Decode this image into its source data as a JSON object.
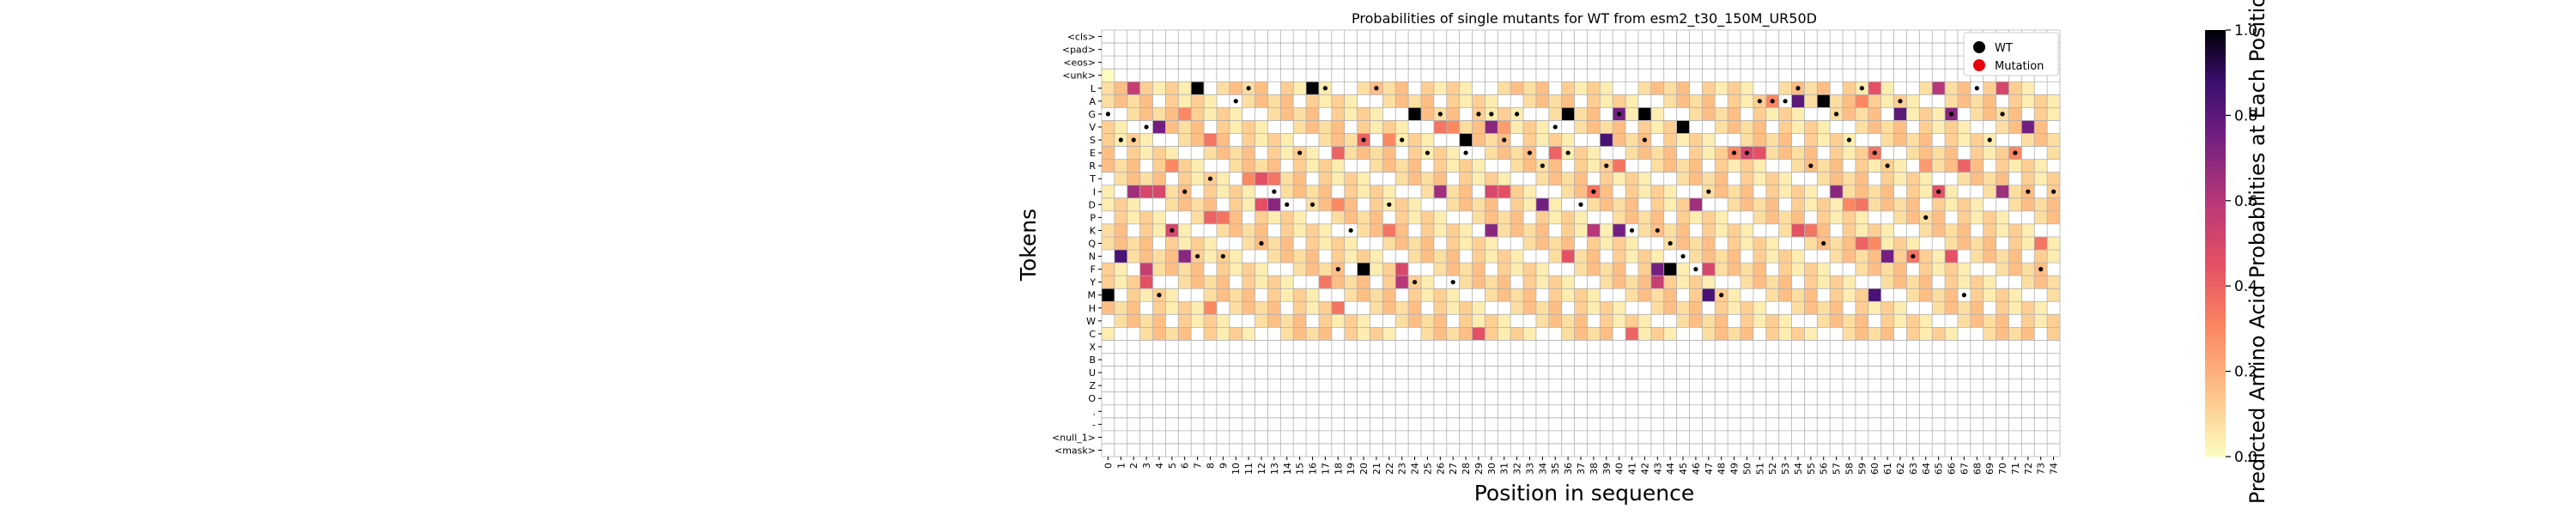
{
  "chart_data": {
    "type": "heatmap",
    "title": "Probabilities of single mutants for WT from esm2_t30_150M_UR50D",
    "xlabel": "Position in sequence",
    "ylabel": "Tokens",
    "colorbar_label": "Predicted Amino Acid Probabilities at Each Position",
    "colorbar_ticks": [
      "0.0",
      "0.2",
      "0.4",
      "0.6",
      "0.8",
      "1.0"
    ],
    "colormap": "magma_r",
    "value_range": [
      0,
      1
    ],
    "legend_placement": "upper-right",
    "legend": [
      {
        "label": "WT",
        "color": "#000000"
      },
      {
        "label": "Mutation",
        "color": "#e8000b"
      }
    ],
    "tokens": [
      "<cls>",
      "<pad>",
      "<eos>",
      "<unk>",
      "L",
      "A",
      "G",
      "V",
      "S",
      "E",
      "R",
      "T",
      "I",
      "D",
      "P",
      "K",
      "Q",
      "N",
      "F",
      "Y",
      "M",
      "H",
      "W",
      "C",
      "X",
      "B",
      "U",
      "Z",
      "O",
      ".",
      "-",
      "<null_1>",
      "<mask>"
    ],
    "positions": [
      "0",
      "1",
      "2",
      "3",
      "4",
      "5",
      "6",
      "7",
      "8",
      "9",
      "10",
      "11",
      "12",
      "13",
      "14",
      "15",
      "16",
      "17",
      "18",
      "19",
      "20",
      "21",
      "22",
      "23",
      "24",
      "25",
      "26",
      "27",
      "28",
      "29",
      "30",
      "31",
      "32",
      "33",
      "34",
      "35",
      "36",
      "37",
      "38",
      "39",
      "40",
      "41",
      "42",
      "43",
      "44",
      "45",
      "46",
      "47",
      "48",
      "49",
      "50",
      "51",
      "52",
      "53",
      "54",
      "55",
      "56",
      "57",
      "58",
      "59",
      "60",
      "61",
      "62",
      "63",
      "64",
      "65",
      "66",
      "67",
      "68",
      "69",
      "70",
      "71",
      "72",
      "73",
      "74"
    ],
    "wt_sequence": "GSSVMKINTNALQIDEDLFKSVLDSGYEGGSGERVEDIRGKSKQNFIMEEAAALRQGSLERLANPIGMLSGEIYI",
    "cells": [
      [
        4,
        2,
        0.55
      ],
      [
        4,
        7,
        1.0
      ],
      [
        4,
        16,
        1.0
      ],
      [
        4,
        70,
        0.5
      ],
      [
        4,
        60,
        0.45
      ],
      [
        4,
        65,
        0.6
      ],
      [
        5,
        56,
        1.0
      ],
      [
        5,
        54,
        0.8
      ],
      [
        5,
        59,
        0.3
      ],
      [
        5,
        52,
        0.3
      ],
      [
        6,
        24,
        1.0
      ],
      [
        6,
        36,
        1.0
      ],
      [
        6,
        42,
        1.0
      ],
      [
        6,
        40,
        0.75
      ],
      [
        6,
        62,
        0.8
      ],
      [
        6,
        66,
        0.7
      ],
      [
        6,
        6,
        0.3
      ],
      [
        7,
        4,
        0.75
      ],
      [
        7,
        45,
        1.0
      ],
      [
        7,
        30,
        0.7
      ],
      [
        7,
        31,
        0.25
      ],
      [
        7,
        72,
        0.75
      ],
      [
        7,
        27,
        0.3
      ],
      [
        7,
        26,
        0.35
      ],
      [
        8,
        28,
        1.0
      ],
      [
        8,
        20,
        0.4
      ],
      [
        8,
        39,
        0.85
      ],
      [
        8,
        22,
        0.3
      ],
      [
        8,
        8,
        0.35
      ],
      [
        9,
        50,
        0.5
      ],
      [
        9,
        51,
        0.45
      ],
      [
        9,
        49,
        0.3
      ],
      [
        9,
        35,
        0.4
      ],
      [
        9,
        18,
        0.4
      ],
      [
        9,
        71,
        0.3
      ],
      [
        9,
        60,
        0.35
      ],
      [
        10,
        5,
        0.3
      ],
      [
        10,
        40,
        0.35
      ],
      [
        10,
        67,
        0.4
      ],
      [
        10,
        64,
        0.25
      ],
      [
        11,
        12,
        0.45
      ],
      [
        11,
        13,
        0.35
      ],
      [
        11,
        11,
        0.3
      ],
      [
        12,
        3,
        0.5
      ],
      [
        12,
        4,
        0.5
      ],
      [
        12,
        2,
        0.65
      ],
      [
        12,
        26,
        0.65
      ],
      [
        12,
        30,
        0.5
      ],
      [
        12,
        31,
        0.45
      ],
      [
        12,
        57,
        0.7
      ],
      [
        12,
        70,
        0.65
      ],
      [
        12,
        65,
        0.45
      ],
      [
        12,
        38,
        0.35
      ],
      [
        13,
        13,
        0.7
      ],
      [
        13,
        12,
        0.45
      ],
      [
        13,
        18,
        0.3
      ],
      [
        13,
        34,
        0.75
      ],
      [
        13,
        46,
        0.65
      ],
      [
        13,
        58,
        0.3
      ],
      [
        13,
        59,
        0.35
      ],
      [
        14,
        9,
        0.35
      ],
      [
        14,
        8,
        0.4
      ],
      [
        15,
        5,
        0.5
      ],
      [
        15,
        30,
        0.7
      ],
      [
        15,
        38,
        0.6
      ],
      [
        15,
        40,
        0.75
      ],
      [
        15,
        22,
        0.35
      ],
      [
        15,
        54,
        0.45
      ],
      [
        15,
        55,
        0.35
      ],
      [
        16,
        59,
        0.4
      ],
      [
        16,
        73,
        0.35
      ],
      [
        16,
        60,
        0.3
      ],
      [
        17,
        1,
        0.85
      ],
      [
        17,
        6,
        0.7
      ],
      [
        17,
        36,
        0.45
      ],
      [
        17,
        61,
        0.75
      ],
      [
        17,
        66,
        0.45
      ],
      [
        17,
        63,
        0.35
      ],
      [
        18,
        20,
        1.0
      ],
      [
        18,
        44,
        1.0
      ],
      [
        18,
        3,
        0.55
      ],
      [
        18,
        43,
        0.75
      ],
      [
        18,
        23,
        0.5
      ],
      [
        18,
        47,
        0.5
      ],
      [
        19,
        3,
        0.45
      ],
      [
        19,
        23,
        0.6
      ],
      [
        19,
        43,
        0.55
      ],
      [
        19,
        17,
        0.35
      ],
      [
        20,
        0,
        1.0
      ],
      [
        20,
        47,
        0.85
      ],
      [
        20,
        60,
        0.85
      ],
      [
        21,
        18,
        0.35
      ],
      [
        21,
        8,
        0.3
      ],
      [
        23,
        29,
        0.45
      ],
      [
        23,
        41,
        0.4
      ],
      [
        3,
        0,
        0.0
      ]
    ],
    "wt_points": [
      [
        6,
        0
      ],
      [
        8,
        1
      ],
      [
        8,
        2
      ],
      [
        7,
        3
      ],
      [
        20,
        4
      ],
      [
        15,
        5
      ],
      [
        12,
        6
      ],
      [
        17,
        7
      ],
      [
        11,
        8
      ],
      [
        17,
        9
      ],
      [
        5,
        10
      ],
      [
        4,
        11
      ],
      [
        16,
        12
      ],
      [
        12,
        13
      ],
      [
        13,
        14
      ],
      [
        9,
        15
      ],
      [
        13,
        16
      ],
      [
        4,
        17
      ],
      [
        18,
        18
      ],
      [
        15,
        19
      ],
      [
        8,
        20
      ],
      [
        4,
        21
      ],
      [
        13,
        22
      ],
      [
        8,
        23
      ],
      [
        19,
        24
      ],
      [
        9,
        25
      ],
      [
        6,
        26
      ],
      [
        19,
        27
      ],
      [
        9,
        28
      ],
      [
        6,
        29
      ],
      [
        6,
        30
      ],
      [
        8,
        31
      ],
      [
        6,
        32
      ],
      [
        9,
        33
      ],
      [
        10,
        34
      ],
      [
        7,
        35
      ],
      [
        9,
        36
      ],
      [
        13,
        37
      ],
      [
        12,
        38
      ],
      [
        10,
        39
      ],
      [
        6,
        40
      ],
      [
        15,
        41
      ],
      [
        8,
        42
      ],
      [
        15,
        43
      ],
      [
        16,
        44
      ],
      [
        17,
        45
      ],
      [
        18,
        46
      ],
      [
        12,
        47
      ],
      [
        20,
        48
      ],
      [
        9,
        49
      ],
      [
        9,
        50
      ],
      [
        5,
        51
      ],
      [
        5,
        52
      ],
      [
        5,
        53
      ],
      [
        4,
        54
      ],
      [
        10,
        55
      ],
      [
        16,
        56
      ],
      [
        6,
        57
      ],
      [
        8,
        58
      ],
      [
        4,
        59
      ],
      [
        9,
        60
      ],
      [
        10,
        61
      ],
      [
        5,
        62
      ],
      [
        17,
        63
      ],
      [
        14,
        64
      ],
      [
        12,
        65
      ],
      [
        6,
        66
      ],
      [
        20,
        67
      ],
      [
        4,
        68
      ],
      [
        8,
        69
      ],
      [
        6,
        70
      ],
      [
        9,
        71
      ],
      [
        12,
        72
      ],
      [
        18,
        73
      ],
      [
        12,
        74
      ]
    ],
    "mutation_points": []
  }
}
